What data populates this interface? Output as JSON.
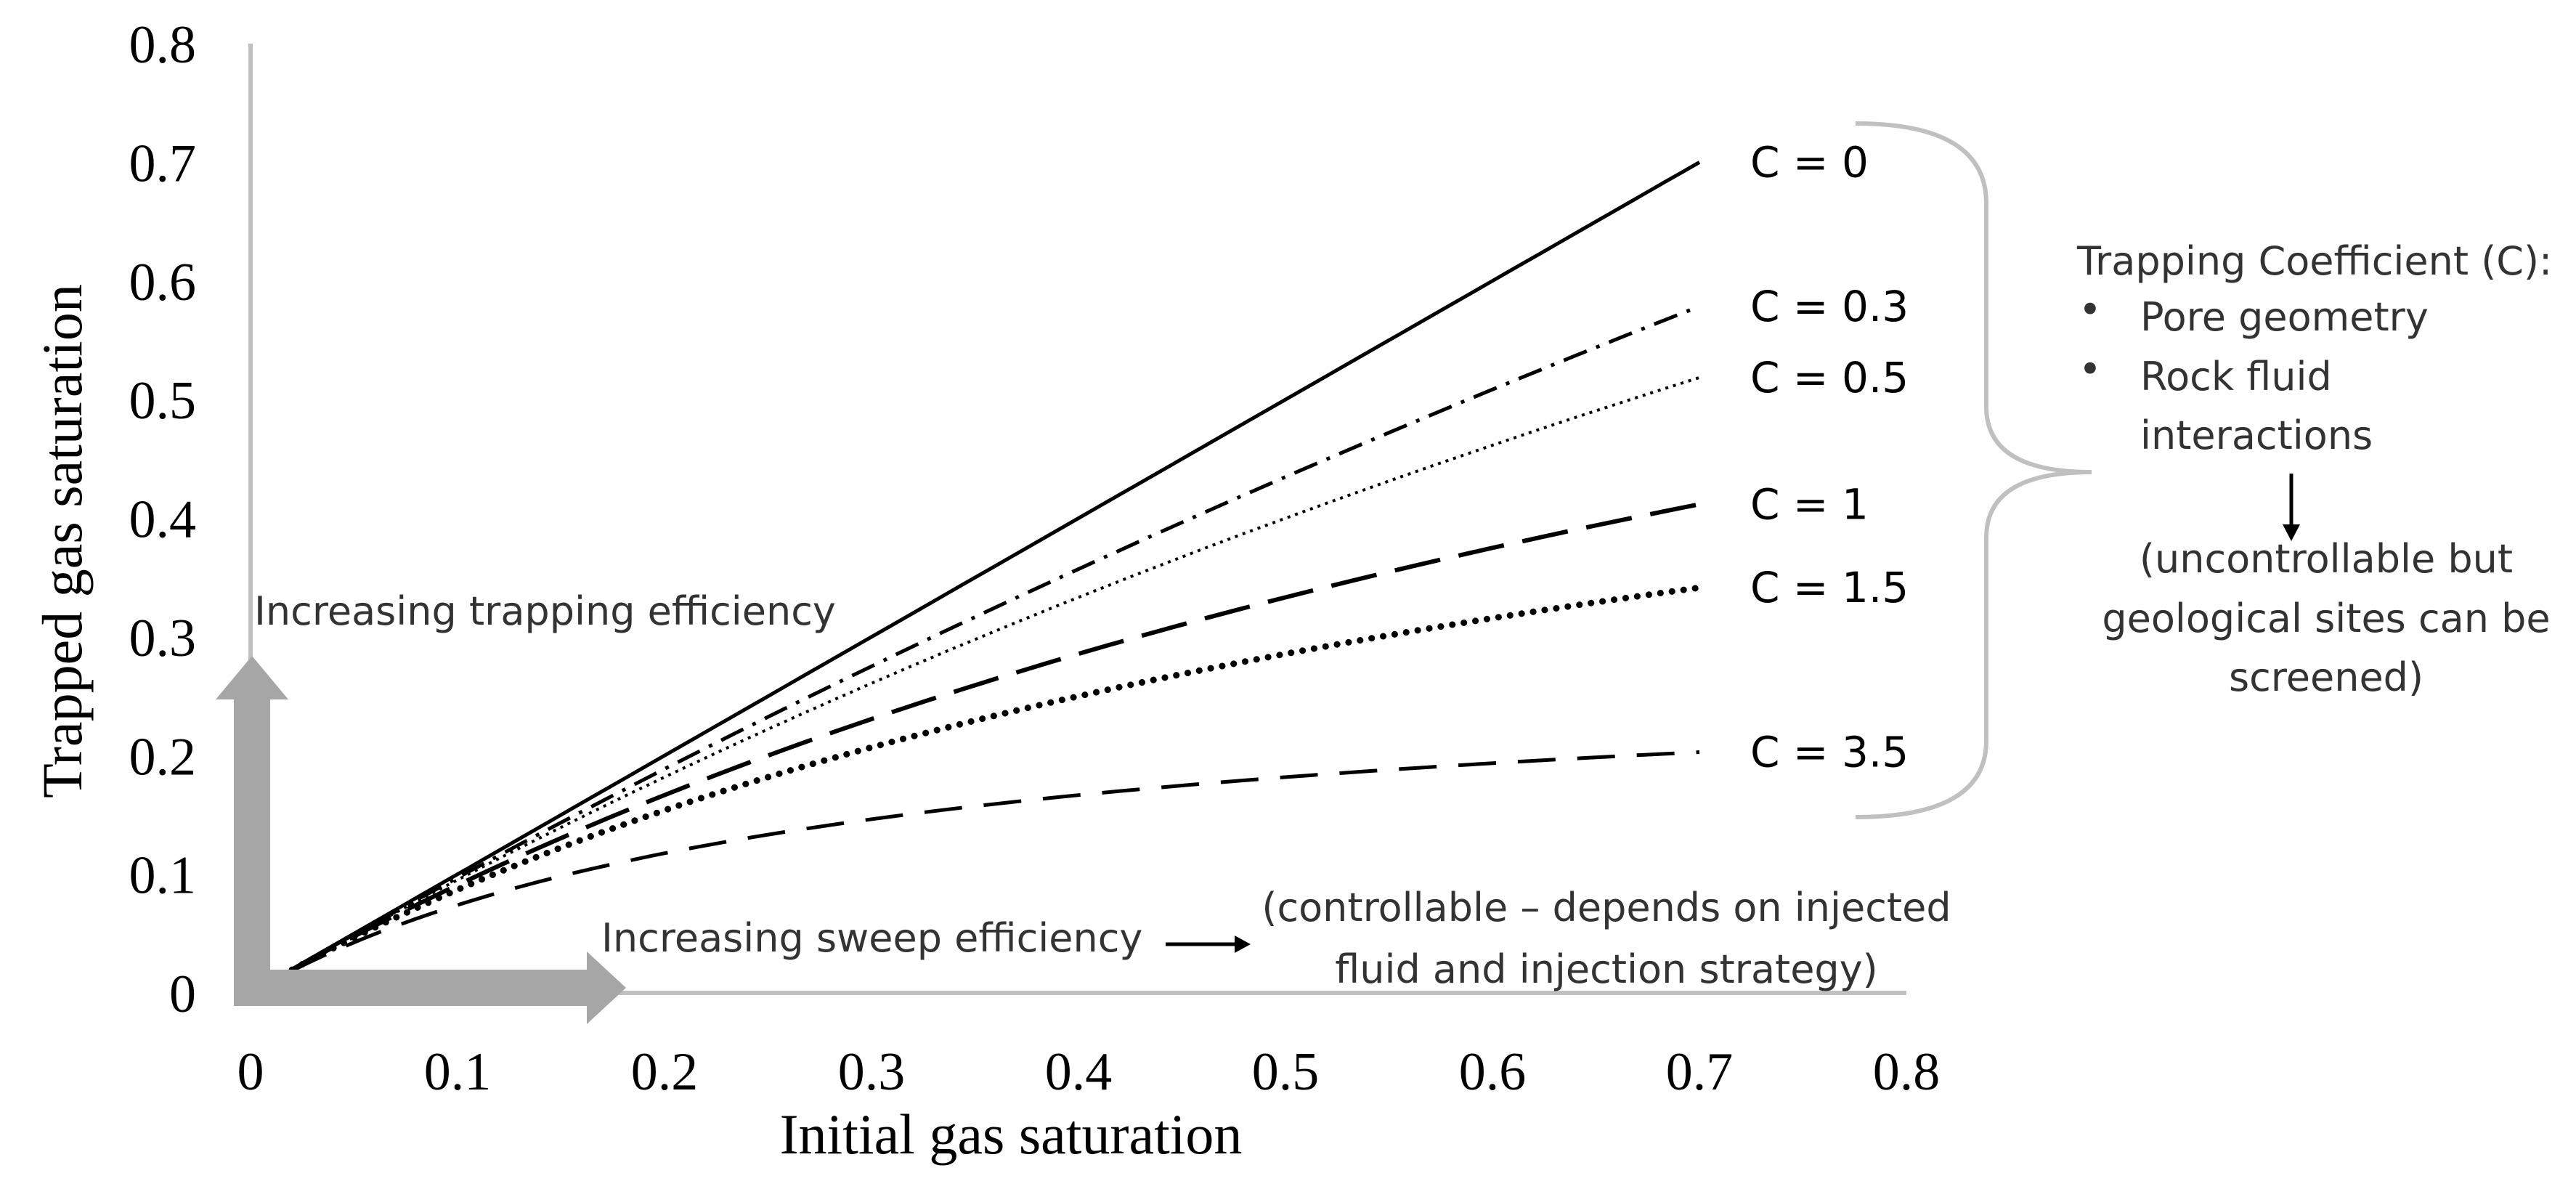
{
  "chart_data": {
    "type": "line",
    "xlabel": "Initial gas saturation",
    "ylabel": "Trapped gas saturation",
    "xlim": [
      0,
      0.8
    ],
    "ylim": [
      0,
      0.8
    ],
    "xticks": [
      "0",
      "0.1",
      "0.2",
      "0.3",
      "0.4",
      "0.5",
      "0.6",
      "0.7",
      "0.8"
    ],
    "yticks": [
      "0",
      "0.1",
      "0.2",
      "0.3",
      "0.4",
      "0.5",
      "0.6",
      "0.7",
      "0.8"
    ],
    "model": "Sgt = Sgi / (1 + C * Sgi)",
    "x_range": [
      0.02,
      0.7
    ],
    "grid": false,
    "series": [
      {
        "name": "C = 0",
        "C": 0,
        "style": "solid"
      },
      {
        "name": "C = 0.3",
        "C": 0.3,
        "style": "dash-dot"
      },
      {
        "name": "C = 0.5",
        "C": 0.5,
        "style": "dotted-fine"
      },
      {
        "name": "C = 1",
        "C": 1,
        "style": "long-dash"
      },
      {
        "name": "C = 1.5",
        "C": 1.5,
        "style": "round-dot"
      },
      {
        "name": "C = 3.5",
        "C": 3.5,
        "style": "dash"
      }
    ],
    "annotations": {
      "trapping_arrow_label": "Increasing trapping efficiency",
      "sweep_arrow_label": "Increasing sweep efficiency",
      "sweep_note_line1": "(controllable – depends on injected",
      "sweep_note_line2": "fluid and injection strategy)",
      "coef_title": "Trapping Coefficient (C):",
      "coef_bullet1": "Pore geometry",
      "coef_bullet2_line1": "Rock fluid",
      "coef_bullet2_line2": "interactions",
      "coef_note_line1": "(uncontrollable but",
      "coef_note_line2": "geological sites can be",
      "coef_note_line3": "screened)",
      "bullet_char": "•"
    },
    "colors": {
      "lines": "#000000",
      "axes": "#c0c0c0",
      "arrows": "#a6a6a6",
      "text": "#333333"
    }
  }
}
